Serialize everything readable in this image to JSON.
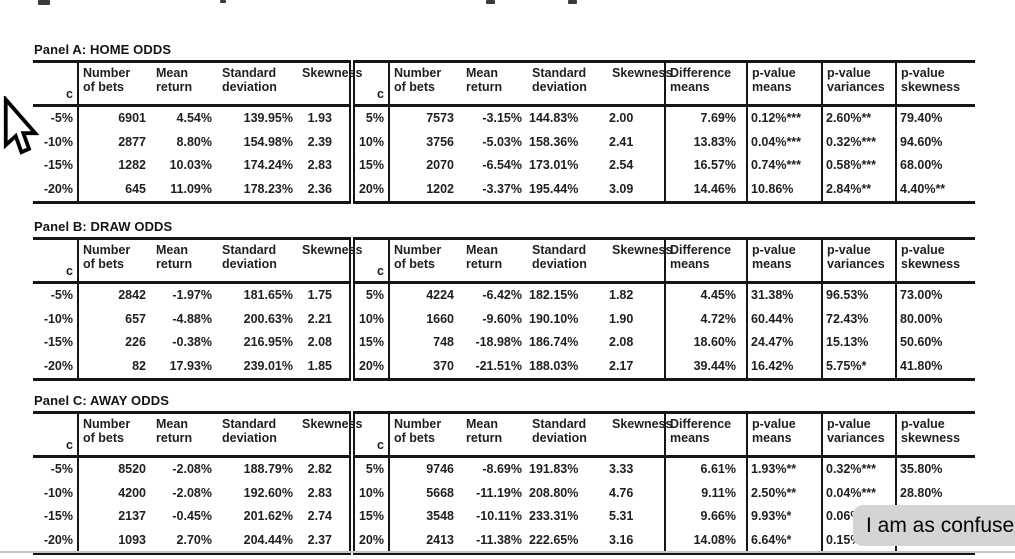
{
  "colors": {
    "background": "#ffffff",
    "table_border": "#161616",
    "table_text": "#1f1f1f",
    "overlay_bg": "#d4d4d4",
    "divider": "#c6c6c6"
  },
  "headers": {
    "c": "c",
    "number_of_bets": [
      "Number",
      "of bets"
    ],
    "mean_return": [
      "Mean",
      "return"
    ],
    "standard_deviation": [
      "Standard",
      "deviation"
    ],
    "skewness": [
      "Skewness"
    ],
    "difference_means": [
      "Difference",
      "means"
    ],
    "p_value_means": [
      "p-value",
      "means"
    ],
    "p_value_variances": [
      "p-value",
      "variances"
    ],
    "p_value_skewness": [
      "p-value",
      "skewness"
    ]
  },
  "panels": [
    {
      "title": "Panel A: HOME ODDS",
      "rows": [
        [
          "-5%",
          "6901",
          "4.54%",
          "139.95%",
          "1.93",
          "5%",
          "7573",
          "-3.15%",
          "144.83%",
          "2.00",
          "7.69%",
          "0.12%***",
          "2.60%**",
          "79.40%"
        ],
        [
          "-10%",
          "2877",
          "8.80%",
          "154.98%",
          "2.39",
          "10%",
          "3756",
          "-5.03%",
          "158.36%",
          "2.41",
          "13.83%",
          "0.04%***",
          "0.32%***",
          "94.60%"
        ],
        [
          "-15%",
          "1282",
          "10.03%",
          "174.24%",
          "2.83",
          "15%",
          "2070",
          "-6.54%",
          "173.01%",
          "2.54",
          "16.57%",
          "0.74%***",
          "0.58%***",
          "68.00%"
        ],
        [
          "-20%",
          "645",
          "11.09%",
          "178.23%",
          "2.36",
          "20%",
          "1202",
          "-3.37%",
          "195.44%",
          "3.09",
          "14.46%",
          "10.86%",
          "2.84%**",
          "4.40%**"
        ]
      ]
    },
    {
      "title": "Panel B: DRAW ODDS",
      "rows": [
        [
          "-5%",
          "2842",
          "-1.97%",
          "181.65%",
          "1.75",
          "5%",
          "4224",
          "-6.42%",
          "182.15%",
          "1.82",
          "4.45%",
          "31.38%",
          "96.53%",
          "73.00%"
        ],
        [
          "-10%",
          "657",
          "-4.88%",
          "200.63%",
          "2.21",
          "10%",
          "1660",
          "-9.60%",
          "190.10%",
          "1.90",
          "4.72%",
          "60.44%",
          "72.43%",
          "80.00%"
        ],
        [
          "-15%",
          "226",
          "-0.38%",
          "216.95%",
          "2.08",
          "15%",
          "748",
          "-18.98%",
          "186.74%",
          "2.08",
          "18.60%",
          "24.47%",
          "15.13%",
          "50.60%"
        ],
        [
          "-20%",
          "82",
          "17.93%",
          "239.01%",
          "1.85",
          "20%",
          "370",
          "-21.51%",
          "188.03%",
          "2.17",
          "39.44%",
          "16.42%",
          "5.75%*",
          "41.80%"
        ]
      ]
    },
    {
      "title": "Panel C: AWAY ODDS",
      "rows": [
        [
          "-5%",
          "8520",
          "-2.08%",
          "188.79%",
          "2.82",
          "5%",
          "9746",
          "-8.69%",
          "191.83%",
          "3.33",
          "6.61%",
          "1.93%**",
          "0.32%***",
          "35.80%"
        ],
        [
          "-10%",
          "4200",
          "-2.08%",
          "192.60%",
          "2.83",
          "10%",
          "5668",
          "-11.19%",
          "208.80%",
          "4.76",
          "9.11%",
          "2.50%**",
          "0.04%***",
          "28.80%"
        ],
        [
          "-15%",
          "2137",
          "-0.45%",
          "201.62%",
          "2.74",
          "15%",
          "3548",
          "-10.11%",
          "233.31%",
          "5.31",
          "9.66%",
          "9.93%*",
          "0.06%",
          ""
        ],
        [
          "-20%",
          "1093",
          "2.70%",
          "204.44%",
          "2.37",
          "20%",
          "2413",
          "-11.38%",
          "222.65%",
          "3.16",
          "14.08%",
          "6.64%*",
          "0.15%",
          ""
        ]
      ]
    }
  ],
  "overlay": {
    "text": "I am as confuse"
  }
}
